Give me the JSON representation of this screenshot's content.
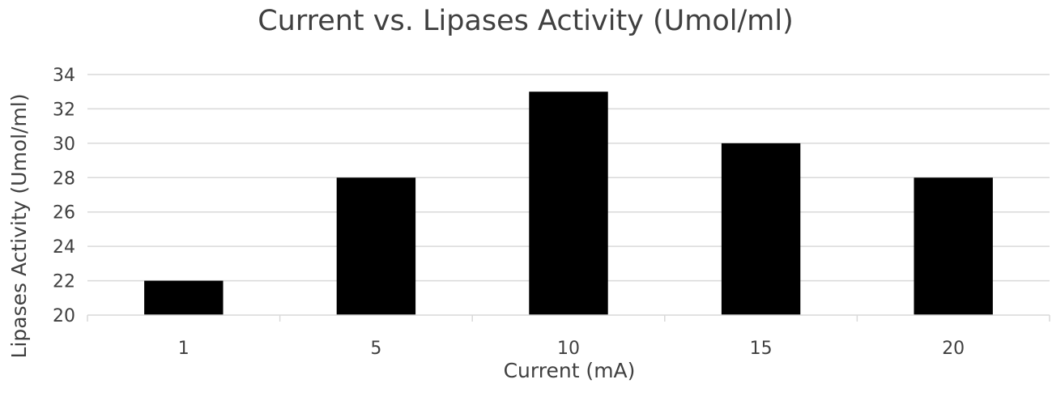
{
  "chart_data": {
    "type": "bar",
    "title": "Current vs. Lipases Activity (Umol/ml)",
    "xlabel": "Current (mA)",
    "ylabel": "Lipases Activity (Umol/ml)",
    "categories": [
      "1",
      "5",
      "10",
      "15",
      "20"
    ],
    "values": [
      22,
      28,
      33,
      30,
      28
    ],
    "ylim": [
      20,
      34
    ],
    "yticks": [
      20,
      22,
      24,
      26,
      28,
      30,
      32,
      34
    ],
    "grid": true,
    "legend": "none",
    "bar_color": "#000000",
    "grid_color": "#d9d9d9",
    "text_color": "#404040"
  }
}
